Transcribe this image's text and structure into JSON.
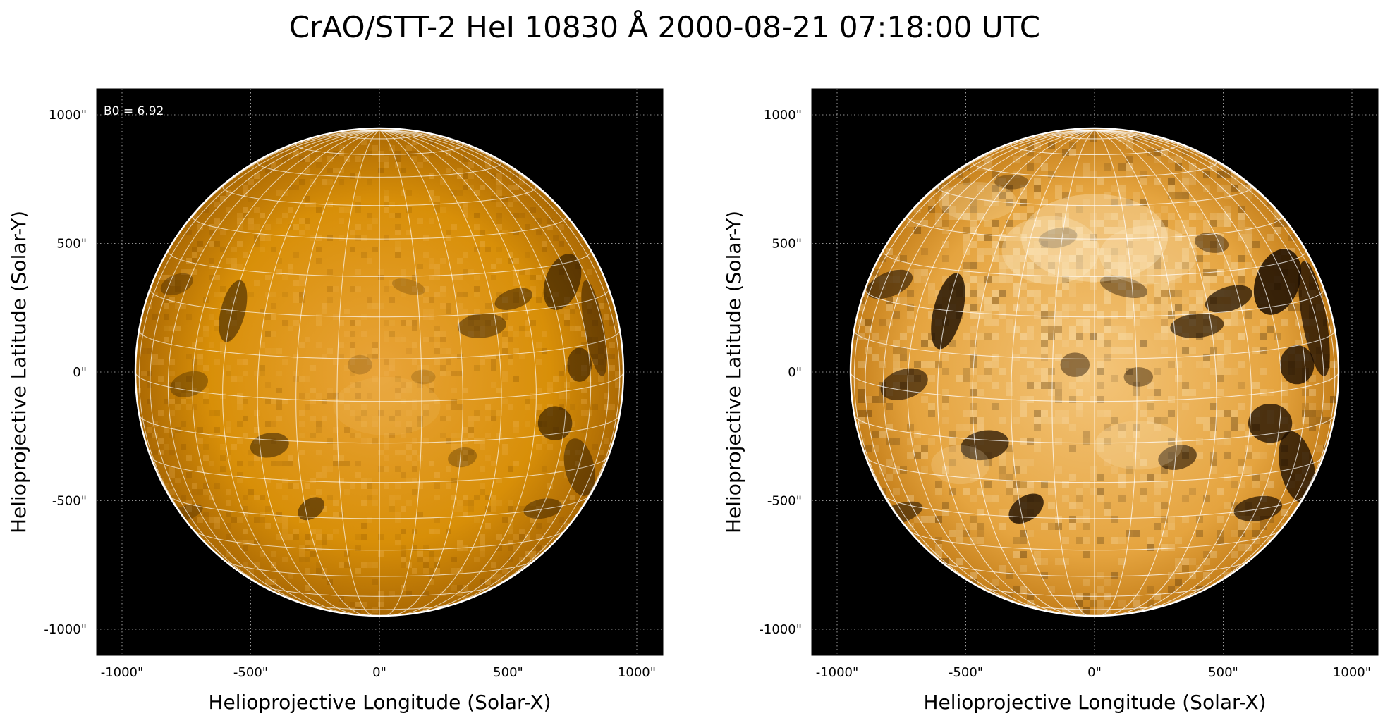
{
  "title": "CrAO/STT-2 HeI 10830 Å 2000-08-21 07:18:00 UTC",
  "colors": {
    "background": "#000000",
    "disk_base": "#d88f08",
    "disk_light": "#f2bc63",
    "disk_highlight": "#fff1cf",
    "disk_dark": "#1a0c00",
    "grid": "#ffffff"
  },
  "panels": [
    {
      "name": "left",
      "annotation": "B0 = 6.92",
      "xlabel": "Helioprojective Longitude (Solar-X)",
      "ylabel": "Helioprojective Latitude (Solar-Y)",
      "xticks": [
        "-1000\"",
        "-500\"",
        "0\"",
        "500\"",
        "1000\""
      ],
      "yticks": [
        "1000\"",
        "500\"",
        "0\"",
        "-500\"",
        "-1000\""
      ],
      "style": "normal"
    },
    {
      "name": "right",
      "annotation": "",
      "xlabel": "Helioprojective Longitude (Solar-X)",
      "ylabel": "Helioprojective Latitude (Solar-Y)",
      "xticks": [
        "-1000\"",
        "-500\"",
        "0\"",
        "500\"",
        "1000\""
      ],
      "yticks": [
        "1000\"",
        "500\"",
        "0\"",
        "-500\"",
        "-1000\""
      ],
      "style": "enhanced"
    }
  ]
}
